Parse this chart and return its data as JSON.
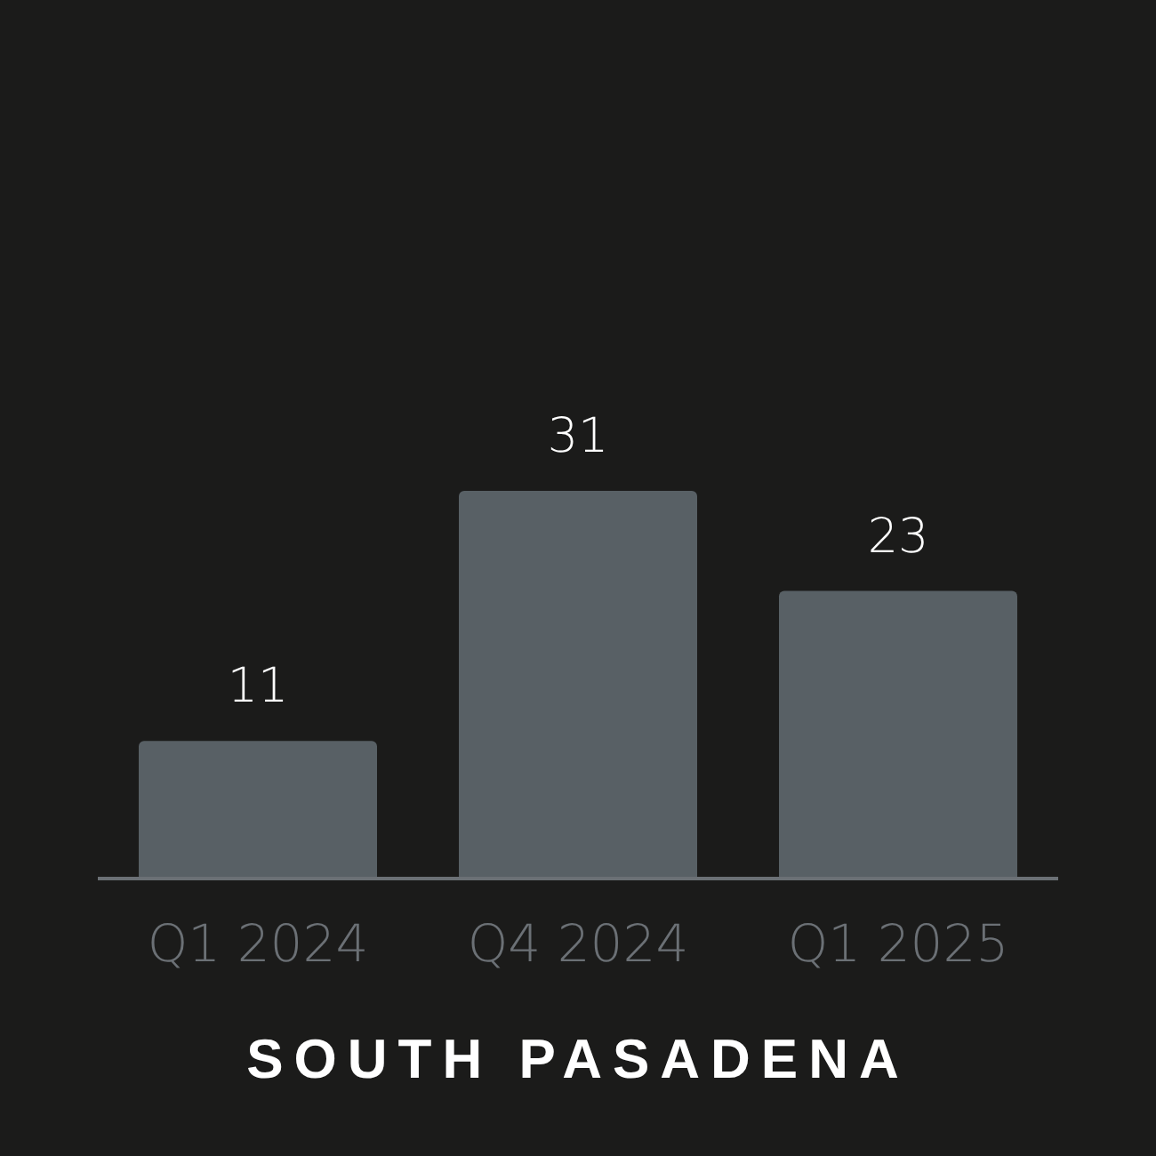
{
  "chart_data": {
    "type": "bar",
    "title": "SOUTH PASADENA",
    "categories": [
      "Q1 2024",
      "Q4 2024",
      "Q1 2025"
    ],
    "values": [
      11,
      31,
      23
    ],
    "color": "#586065",
    "data_labels": true,
    "legend": false,
    "grid": false
  }
}
